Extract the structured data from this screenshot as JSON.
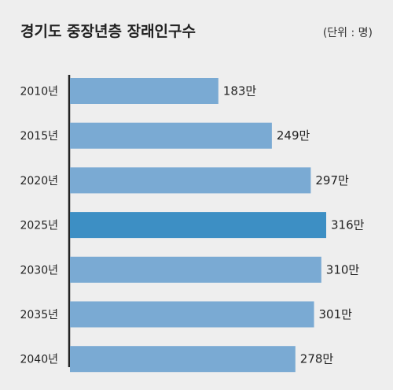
{
  "chart_data": {
    "type": "bar",
    "orientation": "horizontal",
    "title": "경기도 중장년층 장래인구수",
    "unit_label": "(단위 : 명)",
    "categories": [
      "2010년",
      "2015년",
      "2020년",
      "2025년",
      "2030년",
      "2035년",
      "2040년"
    ],
    "values": [
      183,
      249,
      297,
      316,
      310,
      301,
      278
    ],
    "value_labels": [
      "183만",
      "249만",
      "297만",
      "316만",
      "310만",
      "301만",
      "278만"
    ],
    "highlight_category": "2025년",
    "colors": {
      "bar": "#7aaad3",
      "highlight": "#3d8fc4",
      "axis": "#222222",
      "background": "#eeeeee"
    },
    "xlim": [
      0,
      330
    ],
    "grid": false,
    "legend": "none"
  }
}
